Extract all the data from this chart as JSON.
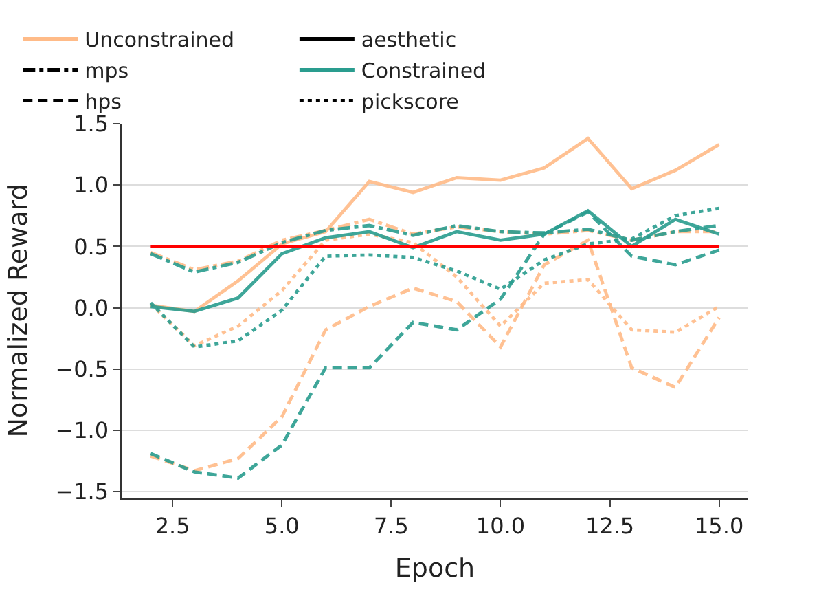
{
  "chart_data": {
    "type": "line",
    "xlabel": "Epoch",
    "ylabel": "Normalized Reward",
    "x": [
      2,
      3,
      4,
      5,
      6,
      7,
      8,
      9,
      10,
      11,
      12,
      13,
      14,
      15
    ],
    "xlim": [
      1.35,
      15.65
    ],
    "ylim": [
      -1.55,
      1.5
    ],
    "xticks": [
      {
        "value": 2.5,
        "label": "2.5"
      },
      {
        "value": 5,
        "label": "5.0"
      },
      {
        "value": 7.5,
        "label": "7.5"
      },
      {
        "value": 10,
        "label": "10.0"
      },
      {
        "value": 12.5,
        "label": "12.5"
      },
      {
        "value": 15,
        "label": "15.0"
      }
    ],
    "yticks": [
      {
        "value": -1.5,
        "label": "−1.5"
      },
      {
        "value": -1,
        "label": "−1.0"
      },
      {
        "value": -0.5,
        "label": "−0.5"
      },
      {
        "value": 0,
        "label": "0.0"
      },
      {
        "value": 0.5,
        "label": "0.5"
      },
      {
        "value": 1,
        "label": "1.0"
      },
      {
        "value": 1.5,
        "label": "1.5"
      }
    ],
    "grid": "y",
    "legend": "top",
    "marker": "none",
    "ref_lines": [
      {
        "axis": "y",
        "value": 0.5,
        "label": null,
        "color": "#ff0000",
        "line_style": "solid"
      }
    ],
    "series": [
      {
        "name": "Unconstrained",
        "color": "#ffbb88",
        "line_style": "solid",
        "values": [
          null,
          null,
          null,
          null,
          null,
          null,
          null,
          null,
          null,
          null,
          null,
          null,
          null,
          null
        ]
      },
      {
        "name": "aesthetic",
        "color": "#000000",
        "line_style": "solid",
        "values": [
          null,
          null,
          null,
          null,
          null,
          null,
          null,
          null,
          null,
          null,
          null,
          null,
          null,
          null
        ]
      },
      {
        "name": "mps",
        "color": "#000000",
        "line_style": "dashdot",
        "values": [
          null,
          null,
          null,
          null,
          null,
          null,
          null,
          null,
          null,
          null,
          null,
          null,
          null,
          null
        ]
      },
      {
        "name": "Constrained",
        "color": "#2a9d8f",
        "line_style": "solid",
        "values": [
          null,
          null,
          null,
          null,
          null,
          null,
          null,
          null,
          null,
          null,
          null,
          null,
          null,
          null
        ]
      },
      {
        "name": "hps",
        "color": "#000000",
        "line_style": "dashed",
        "values": [
          null,
          null,
          null,
          null,
          null,
          null,
          null,
          null,
          null,
          null,
          null,
          null,
          null,
          null
        ]
      },
      {
        "name": "pickscore",
        "color": "#000000",
        "line_style": "dotted",
        "values": [
          null,
          null,
          null,
          null,
          null,
          null,
          null,
          null,
          null,
          null,
          null,
          null,
          null,
          null
        ]
      },
      {
        "color": "#ffbb88",
        "line_style": "solid",
        "values": [
          0.02,
          -0.03,
          0.22,
          0.52,
          0.62,
          1.03,
          0.94,
          1.06,
          1.04,
          1.14,
          1.38,
          0.97,
          1.12,
          1.33
        ]
      },
      {
        "color": "#ffbb88",
        "line_style": "dashdot",
        "values": [
          0.45,
          0.31,
          0.38,
          0.55,
          0.63,
          0.72,
          0.6,
          0.66,
          0.62,
          0.6,
          0.63,
          0.55,
          0.62,
          0.62
        ]
      },
      {
        "color": "#ffbb88",
        "line_style": "dashed",
        "values": [
          -1.21,
          -1.33,
          -1.23,
          -0.89,
          -0.18,
          0.01,
          0.16,
          0.05,
          -0.32,
          0.35,
          0.55,
          -0.49,
          -0.65,
          -0.08
        ]
      },
      {
        "color": "#ffbb88",
        "line_style": "dotted",
        "values": [
          0.03,
          -0.31,
          -0.15,
          0.14,
          0.55,
          0.6,
          0.53,
          0.25,
          -0.15,
          0.2,
          0.23,
          -0.18,
          -0.2,
          0.01
        ]
      },
      {
        "color": "#2a9d8f",
        "line_style": "solid",
        "values": [
          0.01,
          -0.03,
          0.08,
          0.44,
          0.57,
          0.62,
          0.49,
          0.62,
          0.55,
          0.6,
          0.79,
          0.5,
          0.72,
          0.6
        ]
      },
      {
        "color": "#2a9d8f",
        "line_style": "dashdot",
        "values": [
          0.44,
          0.29,
          0.37,
          0.53,
          0.63,
          0.67,
          0.59,
          0.67,
          0.62,
          0.61,
          0.64,
          0.55,
          0.62,
          0.67
        ]
      },
      {
        "color": "#2a9d8f",
        "line_style": "dashed",
        "values": [
          -1.19,
          -1.34,
          -1.39,
          -1.12,
          -0.49,
          -0.49,
          -0.12,
          -0.18,
          0.07,
          0.6,
          0.78,
          0.42,
          0.35,
          0.47
        ]
      },
      {
        "color": "#2a9d8f",
        "line_style": "dotted",
        "values": [
          0.04,
          -0.32,
          -0.27,
          -0.02,
          0.42,
          0.43,
          0.41,
          0.3,
          0.15,
          0.39,
          0.52,
          0.56,
          0.75,
          0.81
        ]
      }
    ]
  }
}
